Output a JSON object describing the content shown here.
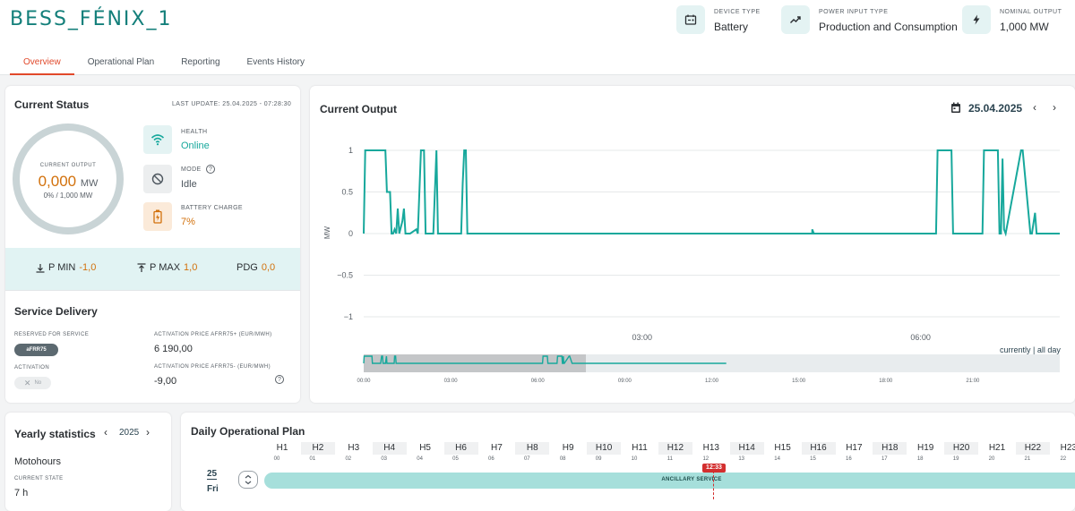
{
  "header": {
    "title": "BESS_FÉNIX_1",
    "info": [
      {
        "label": "DEVICE TYPE",
        "value": "Battery",
        "icon": "battery-calendar-icon"
      },
      {
        "label": "POWER INPUT TYPE",
        "value": "Production and Consumption",
        "icon": "trending-up-icon"
      },
      {
        "label": "NOMINAL OUTPUT",
        "value": "1,000 MW",
        "icon": "lightning-icon"
      }
    ],
    "tabs": [
      "Overview",
      "Operational Plan",
      "Reporting",
      "Events History"
    ],
    "active_tab": "Overview"
  },
  "status": {
    "title": "Current Status",
    "last_update": "LAST UPDATE: 25.04.2025 - 07:28:30",
    "gauge_label": "CURRENT OUTPUT",
    "gauge_value": "0,000",
    "gauge_unit": "MW",
    "gauge_sub": "0% / 1,000 MW",
    "health_label": "HEALTH",
    "health_value": "Online",
    "mode_label": "MODE",
    "mode_value": "Idle",
    "battery_label": "BATTERY CHARGE",
    "battery_value": "7%",
    "pmin_label": "P MIN",
    "pmin_value": "-1,0",
    "pmax_label": "P MAX",
    "pmax_value": "1,0",
    "pdg_label": "PDG",
    "pdg_value": "0,0",
    "colors": {
      "online": "#17a89c",
      "charge": "#d2710c"
    }
  },
  "service": {
    "title": "Service Delivery",
    "reserved_label": "RESERVED FOR SERVICE",
    "reserved_value": "aFRR75",
    "activation_label": "ACTIVATION",
    "activation_value": "No",
    "price_plus_label": "ACTIVATION PRICE AFRR75+ (EUR/MWH)",
    "price_plus_value": "6 190,00",
    "price_minus_label": "ACTIVATION PRICE AFRR75- (EUR/MWH)",
    "price_minus_value": "-9,00"
  },
  "output": {
    "title": "Current Output",
    "date": "25.04.2025",
    "currently_label": "currently",
    "allday_label": "all day",
    "separator": "|"
  },
  "chart_data": {
    "type": "line",
    "title": "Current Output",
    "xlabel": "",
    "ylabel": "MW",
    "ylim": [
      -1,
      1
    ],
    "xlim": [
      "00:00",
      "07:30"
    ],
    "yticks": [
      "1",
      "0.5",
      "0",
      "−0.5",
      "−1"
    ],
    "xticks": [
      "03:00",
      "06:00"
    ],
    "grid": true,
    "color": "#17a89c",
    "series": [
      {
        "x": [
          "00:00",
          "00:01",
          "00:14",
          "00:15",
          "00:17",
          "00:18",
          "00:19",
          "00:20",
          "00:21",
          "00:22",
          "00:23",
          "00:25",
          "00:26",
          "00:27",
          "00:28",
          "00:29",
          "00:30",
          "00:34",
          "00:35",
          "00:37",
          "00:38",
          "00:39",
          "00:40",
          "00:44",
          "00:45",
          "00:47",
          "00:48",
          "00:49",
          "00:50",
          "01:00",
          "01:01",
          "01:02",
          "01:03",
          "01:04",
          "01:05",
          "01:06",
          "01:07",
          "01:11",
          "01:12",
          "01:13",
          "01:14",
          "04:50",
          "04:50",
          "04:51",
          "04:51",
          "06:10",
          "06:11",
          "06:20",
          "06:21",
          "06:40",
          "06:41",
          "06:50",
          "06:51",
          "06:52",
          "06:53",
          "06:54",
          "06:55",
          "07:05",
          "07:06",
          "07:11",
          "07:12",
          "07:14",
          "07:15",
          "07:30"
        ],
        "y": [
          0,
          1,
          1,
          0.5,
          0.5,
          0,
          0,
          0.05,
          0,
          0.3,
          0,
          0.15,
          0.3,
          0,
          0,
          0,
          0,
          0.05,
          0,
          1,
          1,
          1,
          0,
          0,
          0,
          1,
          0,
          0,
          0,
          0,
          0,
          0,
          0,
          0.6,
          1,
          1,
          0,
          0,
          0,
          0,
          0,
          0,
          0.05,
          0,
          0,
          0,
          1,
          1,
          0,
          0,
          1,
          1,
          0,
          0,
          0.9,
          0.05,
          0,
          1,
          1,
          0,
          0,
          0.25,
          0,
          0
        ]
      }
    ],
    "navigator_ticks": [
      "00:00",
      "03:00",
      "06:00",
      "09:00",
      "12:00",
      "15:00",
      "18:00",
      "21:00"
    ]
  },
  "yearly": {
    "title": "Yearly statistics",
    "year": "2025",
    "motohours_label": "Motohours",
    "state_label": "CURRENT STATE",
    "state_value": "7 h"
  },
  "plan": {
    "title": "Daily Operational Plan",
    "hours": [
      "H1",
      "H2",
      "H3",
      "H4",
      "H5",
      "H6",
      "H7",
      "H8",
      "H9",
      "H10",
      "H11",
      "H12",
      "H13",
      "H14",
      "H15",
      "H16",
      "H17",
      "H18",
      "H19",
      "H20",
      "H21",
      "H22",
      "H23"
    ],
    "hour_nums": [
      "00",
      "01",
      "02",
      "03",
      "04",
      "05",
      "06",
      "07",
      "08",
      "09",
      "10",
      "11",
      "12",
      "13",
      "14",
      "15",
      "16",
      "17",
      "18",
      "19",
      "20",
      "21",
      "22"
    ],
    "day_num": "25",
    "day_name": "Fri",
    "now_time": "12:33",
    "bar_label": "ANCILLARY SERVICE"
  }
}
